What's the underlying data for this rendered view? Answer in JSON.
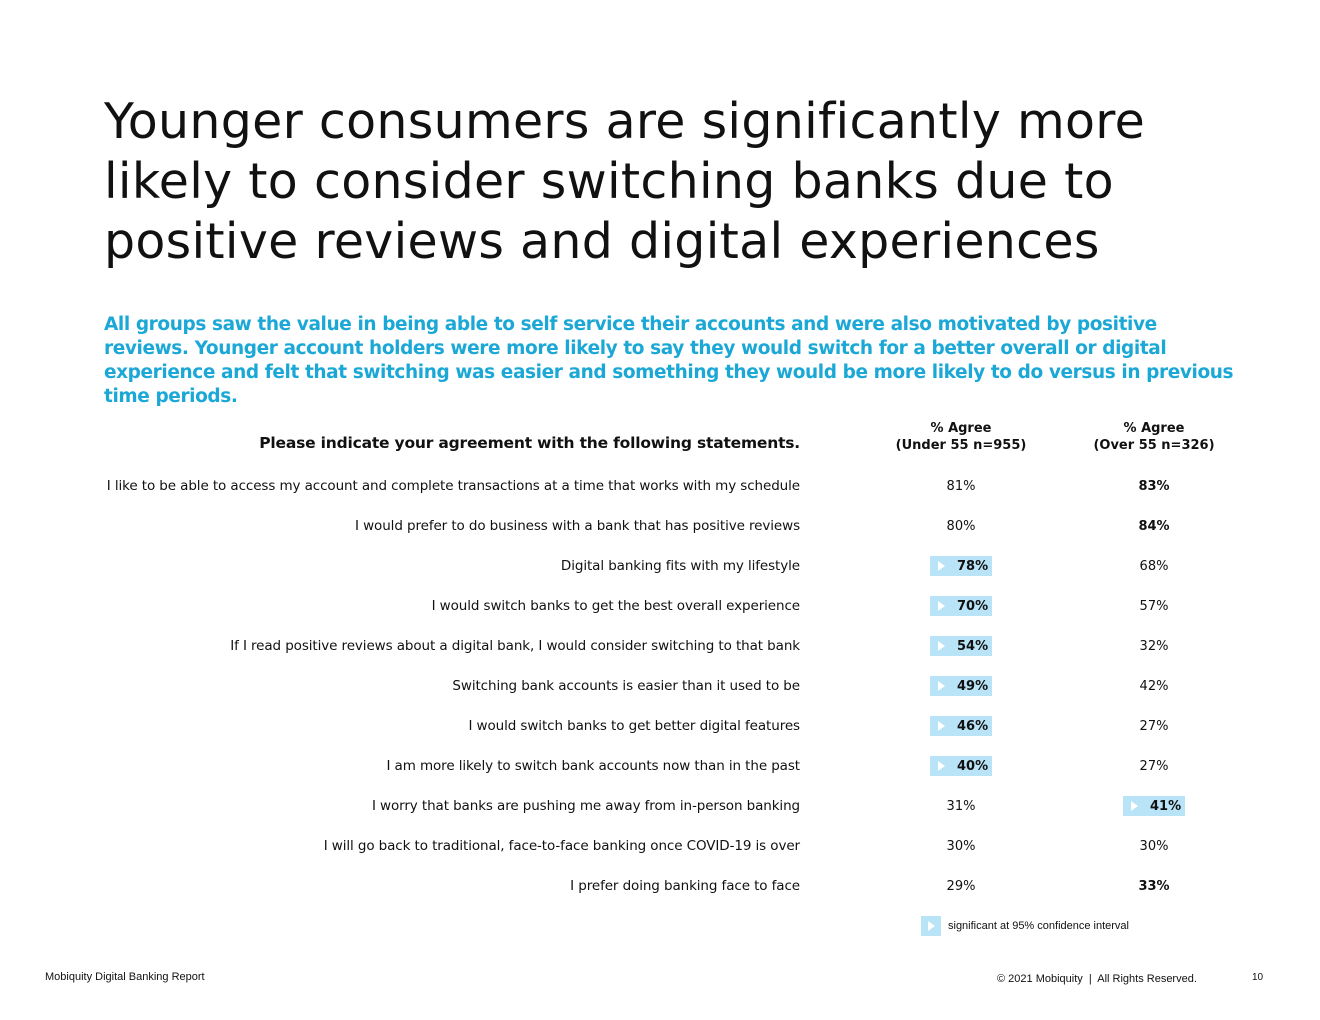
{
  "title": "Younger consumers are significantly more likely to consider switching banks due to positive reviews and digital experiences",
  "subtitle": "All groups saw the value in being able to self service their accounts and were also motivated by positive reviews. Younger account holders were more likely to say they would switch for a better overall or digital experience and felt that switching was easier and something they would be more likely to do versus in previous time periods.",
  "table": {
    "question": "Please indicate your agreement with the following statements.",
    "col_a": {
      "line1": "% Agree",
      "line2": "(Under 55 n=955)"
    },
    "col_b": {
      "line1": "% Agree",
      "line2": "(Over 55 n=326)"
    },
    "rows": [
      {
        "statement": "I like to be able to access my account and complete transactions at a time that works with my schedule",
        "a": "81%",
        "b": "83%"
      },
      {
        "statement": "I would prefer to do business with a bank that has positive reviews",
        "a": "80%",
        "b": "84%"
      },
      {
        "statement": "Digital banking fits with my lifestyle",
        "a": "78%",
        "b": "68%"
      },
      {
        "statement": "I would switch banks to get the best overall experience",
        "a": "70%",
        "b": "57%"
      },
      {
        "statement": "If I read positive reviews about a digital bank, I would consider switching to that bank",
        "a": "54%",
        "b": "32%"
      },
      {
        "statement": "Switching bank accounts is easier than it used to be",
        "a": "49%",
        "b": "42%"
      },
      {
        "statement": "I would switch banks to get better digital features",
        "a": "46%",
        "b": "27%"
      },
      {
        "statement": "I am more likely to switch bank accounts now than in the past",
        "a": "40%",
        "b": "27%"
      },
      {
        "statement": "I worry that banks are pushing me away from in-person banking",
        "a": "31%",
        "b": "41%"
      },
      {
        "statement": "I will go back to traditional, face-to-face banking once COVID-19 is over",
        "a": "30%",
        "b": "30%"
      },
      {
        "statement": "I prefer doing banking face to face",
        "a": "29%",
        "b": "33%"
      }
    ]
  },
  "legend": {
    "text": "significant at 95% confidence interval",
    "swatch_color": "#b9e3f7"
  },
  "footer": {
    "left": "Mobiquity Digital Banking Report",
    "right": "© 2021 Mobiquity  |  All Rights Reserved.",
    "page": "10"
  },
  "colors": {
    "accent": "#1ba8d6",
    "highlight": "#b9e3f7",
    "text": "#111111"
  }
}
